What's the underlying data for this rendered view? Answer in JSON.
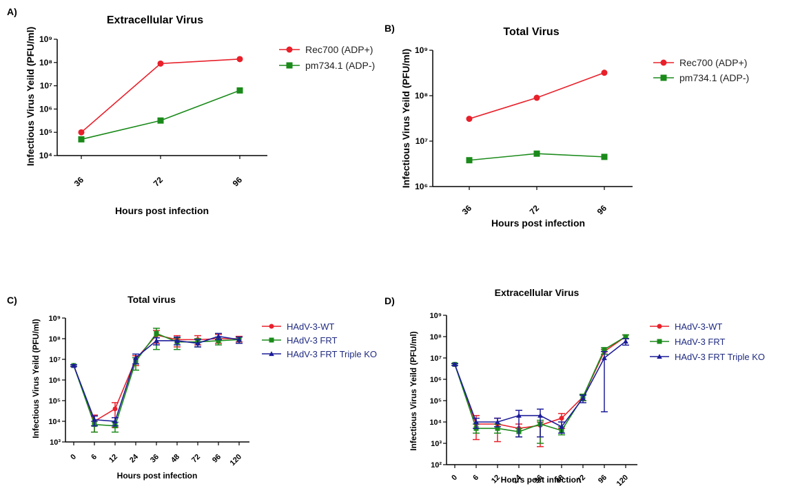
{
  "chart_data": [
    {
      "panel": "A)",
      "type": "line",
      "title": "Extracellular Virus",
      "xlabel": "Hours post infection",
      "ylabel": "Infectious Virus Yeild (PFU/ml)",
      "yscale": "log",
      "ylim": [
        10000,
        1000000000
      ],
      "categories": [
        "36",
        "72",
        "96"
      ],
      "legend_position": "right",
      "series": [
        {
          "name": "Rec700  (ADP+)",
          "color": "#e8202a",
          "marker": "circle",
          "values": [
            100000,
            90000000,
            140000000
          ]
        },
        {
          "name": "pm734.1 (ADP-)",
          "color": "#1a8a1a",
          "marker": "square",
          "values": [
            50000,
            320000,
            6300000
          ]
        }
      ]
    },
    {
      "panel": "B)",
      "type": "line",
      "title": "Total  Virus",
      "xlabel": "Hours post infection",
      "ylabel": "Infectious Virus Yeild (PFU/ml)",
      "yscale": "log",
      "ylim": [
        1000000,
        1000000000
      ],
      "categories": [
        "36",
        "72",
        "96"
      ],
      "legend_position": "right",
      "series": [
        {
          "name": "Rec700  (ADP+)",
          "color": "#e8202a",
          "marker": "circle",
          "values": [
            31000000,
            90000000,
            320000000
          ]
        },
        {
          "name": "pm734.1 (ADP-)",
          "color": "#1a8a1a",
          "marker": "square",
          "values": [
            3800000,
            5300000,
            4500000
          ]
        }
      ]
    },
    {
      "panel": "C)",
      "type": "line",
      "title": "Total virus",
      "xlabel": "Hours post infection",
      "ylabel": "Infectious Virus Yeild (PFU/ml)",
      "yscale": "log",
      "ylim": [
        1000,
        1000000000
      ],
      "categories": [
        "0",
        "6",
        "12",
        "24",
        "36",
        "48",
        "72",
        "96",
        "120"
      ],
      "legend_position": "right",
      "series": [
        {
          "name": "HAdV-3-WT",
          "color": "#e8202a",
          "marker": "circle",
          "values": [
            5000000,
            10000,
            40000,
            10000000,
            150000000,
            90000000,
            90000000,
            100000000,
            100000000
          ],
          "err_low": [
            4500000,
            3000,
            5000,
            5000000,
            60000000,
            40000000,
            50000000,
            60000000,
            70000000
          ],
          "err_high": [
            5500000,
            20000,
            80000,
            15000000,
            250000000,
            140000000,
            140000000,
            160000000,
            130000000
          ]
        },
        {
          "name": "HAdV-3 FRT",
          "color": "#1a8a1a",
          "marker": "square",
          "values": [
            5000000,
            7000,
            6000,
            8000000,
            180000000,
            70000000,
            70000000,
            80000000,
            90000000
          ],
          "err_low": [
            4500000,
            3000,
            3000,
            3000000,
            30000000,
            30000000,
            40000000,
            50000000,
            60000000
          ],
          "err_high": [
            5500000,
            10000,
            9000,
            12000000,
            320000000,
            110000000,
            100000000,
            120000000,
            120000000
          ]
        },
        {
          "name": "HAdV-3 FRT Triple KO",
          "color": "#1c1c99",
          "marker": "triangle",
          "values": [
            5000000,
            12000,
            10000,
            12000000,
            80000000,
            80000000,
            60000000,
            130000000,
            90000000
          ],
          "err_low": [
            4500000,
            6000,
            6000,
            6000000,
            50000000,
            50000000,
            40000000,
            90000000,
            60000000
          ],
          "err_high": [
            5500000,
            18000,
            15000,
            18000000,
            110000000,
            120000000,
            90000000,
            180000000,
            120000000
          ]
        }
      ]
    },
    {
      "panel": "D)",
      "type": "line",
      "title": "Extracellular Virus",
      "xlabel": "Hours post infection",
      "ylabel": "Infectious Virus Yeild (PFU/ml)",
      "yscale": "log",
      "ylim": [
        100,
        1000000000
      ],
      "categories": [
        "0",
        "6",
        "12",
        "24",
        "36",
        "48",
        "72",
        "96",
        "120"
      ],
      "legend_position": "right",
      "series": [
        {
          "name": "HAdV-3-WT",
          "color": "#e8202a",
          "marker": "circle",
          "values": [
            5000000,
            8000,
            8000,
            5000,
            7000,
            15000,
            150000,
            20000000,
            100000000
          ],
          "err_low": [
            4500000,
            1500,
            1200,
            2000,
            700,
            5000,
            100000,
            15000000,
            80000000
          ],
          "err_high": [
            5500000,
            20000,
            15000,
            8000,
            10000,
            25000,
            200000,
            25000000,
            120000000
          ]
        },
        {
          "name": "HAdV-3 FRT",
          "color": "#1a8a1a",
          "marker": "square",
          "values": [
            5000000,
            5000,
            5000,
            3500,
            8000,
            4000,
            150000,
            25000000,
            100000000
          ],
          "err_low": [
            4500000,
            3000,
            3000,
            2000,
            1000,
            2500,
            100000,
            15000000,
            80000000
          ],
          "err_high": [
            5500000,
            8000,
            8000,
            5000,
            12000,
            6000,
            200000,
            30000000,
            120000000
          ]
        },
        {
          "name": "HAdV-3 FRT Triple KO",
          "color": "#1c1c99",
          "marker": "triangle",
          "values": [
            5000000,
            10000,
            10000,
            20000,
            20000,
            6000,
            130000,
            10000000,
            60000000
          ],
          "err_low": [
            4500000,
            5000,
            6000,
            2000,
            2000,
            3000,
            80000,
            30000,
            40000000
          ],
          "err_high": [
            5500000,
            15000,
            15000,
            35000,
            40000,
            10000,
            180000,
            20000000,
            80000000
          ]
        }
      ]
    }
  ]
}
